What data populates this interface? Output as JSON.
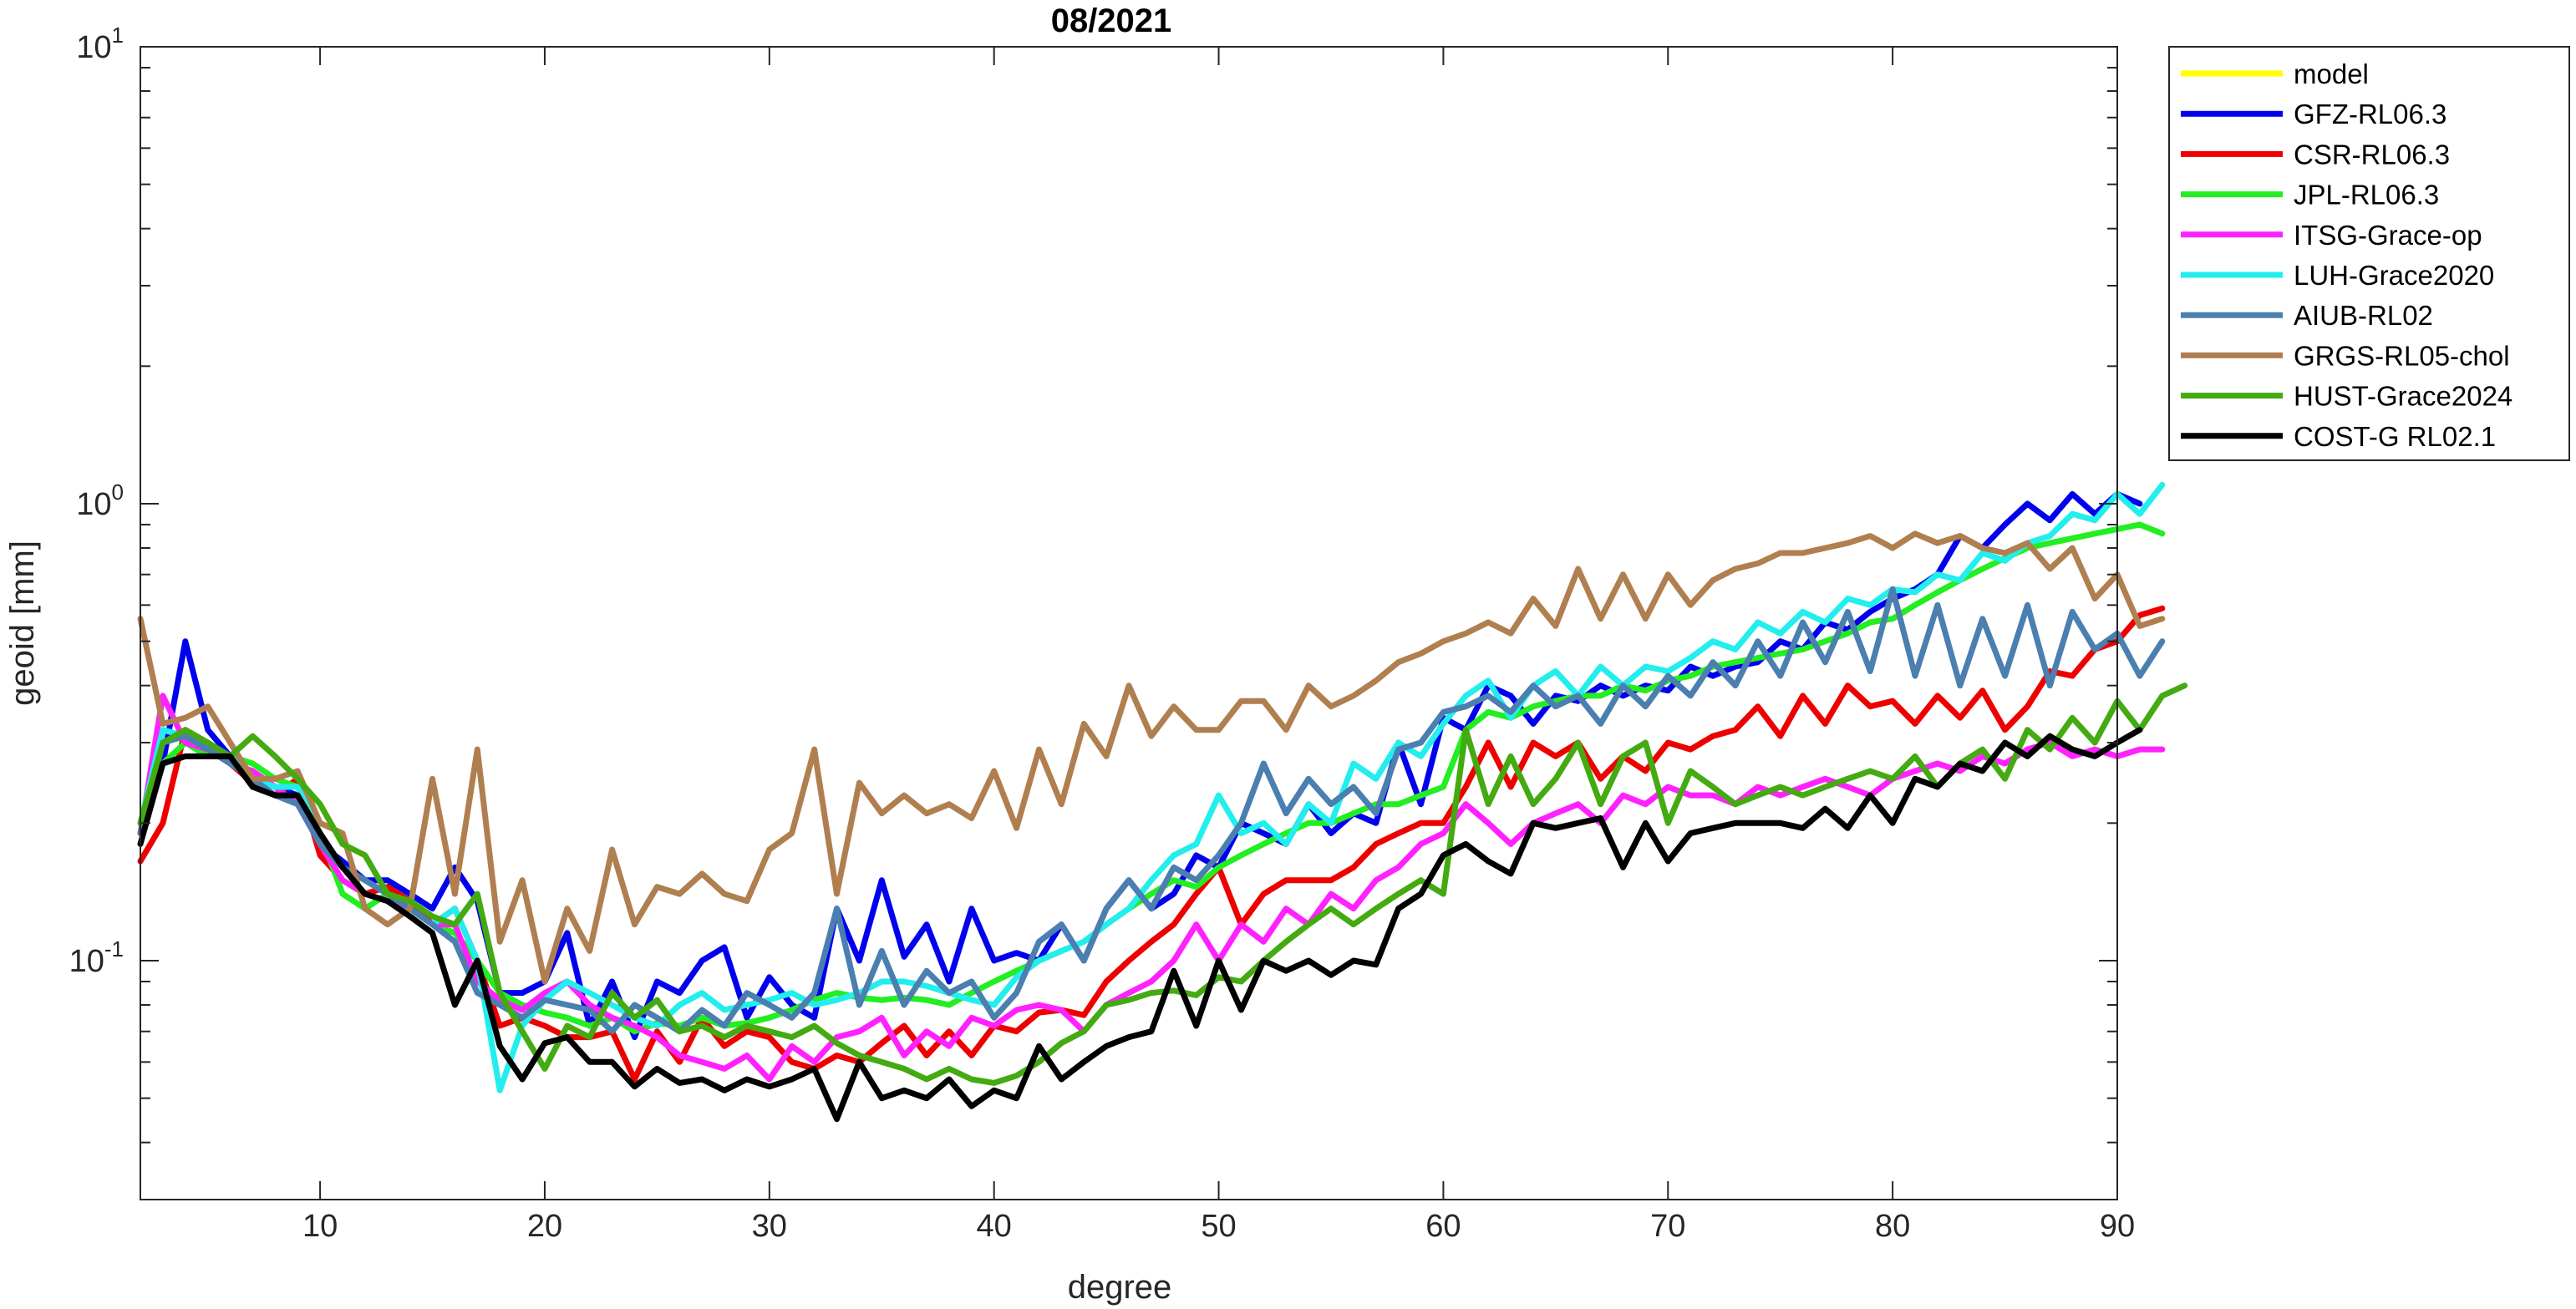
{
  "chart_data": {
    "type": "line",
    "title": "08/2021",
    "xlabel": "degree",
    "ylabel": "geoid [mm]",
    "xlim": [
      2,
      90
    ],
    "ylim": [
      0.03,
      10
    ],
    "yscale": "log",
    "grid": false,
    "legend_position": "outside-top-right",
    "x_ticks": [
      10,
      20,
      30,
      40,
      50,
      60,
      70,
      80,
      90
    ],
    "x_tick_labels": [
      "10",
      "20",
      "30",
      "40",
      "50",
      "60",
      "70",
      "80",
      "90"
    ],
    "y_ticks": [
      {
        "value": 10,
        "base": "10",
        "exponent": "1"
      },
      {
        "value": 1,
        "base": "10",
        "exponent": "0"
      },
      {
        "value": 0.1,
        "base": "10",
        "exponent": "-1"
      }
    ],
    "series": [
      {
        "name": "model",
        "color": "#ffff00",
        "values": []
      },
      {
        "name": "GFZ-RL06.3",
        "color": "#0000ee",
        "values": [
          0.19,
          0.27,
          0.5,
          0.32,
          0.28,
          0.25,
          0.24,
          0.23,
          0.18,
          0.165,
          0.15,
          0.15,
          0.14,
          0.13,
          0.16,
          0.135,
          0.085,
          0.085,
          0.09,
          0.115,
          0.072,
          0.09,
          0.068,
          0.09,
          0.085,
          0.1,
          0.107,
          0.075,
          0.092,
          0.08,
          0.075,
          0.13,
          0.1,
          0.15,
          0.102,
          0.12,
          0.09,
          0.13,
          0.1,
          0.104,
          0.1,
          0.12,
          0.1,
          0.13,
          0.15,
          0.13,
          0.14,
          0.17,
          0.16,
          0.2,
          0.19,
          0.18,
          0.22,
          0.19,
          0.21,
          0.2,
          0.3,
          0.22,
          0.34,
          0.32,
          0.4,
          0.38,
          0.33,
          0.38,
          0.37,
          0.4,
          0.38,
          0.4,
          0.39,
          0.44,
          0.42,
          0.44,
          0.45,
          0.5,
          0.48,
          0.55,
          0.53,
          0.58,
          0.62,
          0.65,
          0.7,
          0.85,
          0.8,
          0.9,
          1.0,
          0.92,
          1.05,
          0.95,
          1.05,
          1.0
        ]
      },
      {
        "name": "CSR-RL06.3",
        "color": "#ee0000",
        "values": [
          0.165,
          0.2,
          0.32,
          0.3,
          0.27,
          0.245,
          0.23,
          0.25,
          0.17,
          0.15,
          0.14,
          0.145,
          0.135,
          0.12,
          0.13,
          0.1,
          0.072,
          0.075,
          0.072,
          0.068,
          0.068,
          0.07,
          0.055,
          0.07,
          0.06,
          0.075,
          0.065,
          0.07,
          0.068,
          0.06,
          0.058,
          0.062,
          0.06,
          0.066,
          0.072,
          0.062,
          0.07,
          0.062,
          0.072,
          0.07,
          0.077,
          0.078,
          0.076,
          0.09,
          0.1,
          0.11,
          0.12,
          0.14,
          0.16,
          0.12,
          0.14,
          0.15,
          0.15,
          0.15,
          0.16,
          0.18,
          0.19,
          0.2,
          0.2,
          0.24,
          0.3,
          0.24,
          0.3,
          0.28,
          0.3,
          0.25,
          0.28,
          0.26,
          0.3,
          0.29,
          0.31,
          0.32,
          0.36,
          0.31,
          0.38,
          0.33,
          0.4,
          0.36,
          0.37,
          0.33,
          0.38,
          0.34,
          0.39,
          0.32,
          0.36,
          0.43,
          0.42,
          0.48,
          0.5,
          0.57,
          0.59
        ]
      },
      {
        "name": "JPL-RL06.3",
        "color": "#22ee22",
        "values": [
          0.2,
          0.27,
          0.3,
          0.28,
          0.28,
          0.27,
          0.25,
          0.24,
          0.19,
          0.14,
          0.13,
          0.14,
          0.13,
          0.12,
          0.115,
          0.1,
          0.085,
          0.08,
          0.077,
          0.075,
          0.072,
          0.075,
          0.07,
          0.073,
          0.072,
          0.075,
          0.072,
          0.073,
          0.075,
          0.078,
          0.082,
          0.085,
          0.083,
          0.082,
          0.083,
          0.082,
          0.08,
          0.085,
          0.09,
          0.095,
          0.1,
          0.105,
          0.11,
          0.12,
          0.13,
          0.14,
          0.15,
          0.145,
          0.16,
          0.17,
          0.18,
          0.19,
          0.2,
          0.2,
          0.21,
          0.22,
          0.22,
          0.23,
          0.24,
          0.32,
          0.35,
          0.34,
          0.36,
          0.37,
          0.38,
          0.38,
          0.4,
          0.39,
          0.41,
          0.42,
          0.44,
          0.45,
          0.46,
          0.47,
          0.48,
          0.5,
          0.52,
          0.55,
          0.56,
          0.6,
          0.64,
          0.68,
          0.72,
          0.76,
          0.8,
          0.82,
          0.84,
          0.86,
          0.88,
          0.9,
          0.86
        ]
      },
      {
        "name": "ITSG-Grace-op",
        "color": "#ff22ff",
        "values": [
          0.19,
          0.38,
          0.3,
          0.29,
          0.27,
          0.26,
          0.24,
          0.22,
          0.18,
          0.15,
          0.14,
          0.135,
          0.13,
          0.12,
          0.12,
          0.09,
          0.082,
          0.078,
          0.085,
          0.09,
          0.08,
          0.075,
          0.072,
          0.068,
          0.062,
          0.06,
          0.058,
          0.062,
          0.055,
          0.065,
          0.06,
          0.068,
          0.07,
          0.075,
          0.062,
          0.07,
          0.065,
          0.075,
          0.072,
          0.078,
          0.08,
          0.078,
          0.07,
          0.08,
          0.085,
          0.09,
          0.1,
          0.12,
          0.1,
          0.12,
          0.11,
          0.13,
          0.12,
          0.14,
          0.13,
          0.15,
          0.16,
          0.18,
          0.19,
          0.22,
          0.2,
          0.18,
          0.2,
          0.21,
          0.22,
          0.2,
          0.23,
          0.22,
          0.24,
          0.23,
          0.23,
          0.22,
          0.24,
          0.23,
          0.24,
          0.25,
          0.24,
          0.23,
          0.25,
          0.26,
          0.27,
          0.26,
          0.28,
          0.27,
          0.29,
          0.3,
          0.28,
          0.29,
          0.28,
          0.29,
          0.29
        ]
      },
      {
        "name": "LUH-Grace2020",
        "color": "#22eeee",
        "values": [
          0.2,
          0.32,
          0.31,
          0.3,
          0.28,
          0.25,
          0.24,
          0.24,
          0.19,
          0.16,
          0.15,
          0.14,
          0.13,
          0.12,
          0.13,
          0.1,
          0.052,
          0.072,
          0.082,
          0.09,
          0.085,
          0.08,
          0.075,
          0.072,
          0.08,
          0.085,
          0.078,
          0.08,
          0.082,
          0.085,
          0.08,
          0.082,
          0.085,
          0.09,
          0.09,
          0.088,
          0.085,
          0.082,
          0.08,
          0.092,
          0.1,
          0.105,
          0.11,
          0.12,
          0.13,
          0.15,
          0.17,
          0.18,
          0.23,
          0.19,
          0.2,
          0.18,
          0.22,
          0.2,
          0.27,
          0.25,
          0.3,
          0.28,
          0.33,
          0.38,
          0.41,
          0.34,
          0.4,
          0.43,
          0.38,
          0.44,
          0.4,
          0.44,
          0.43,
          0.46,
          0.5,
          0.48,
          0.55,
          0.52,
          0.58,
          0.55,
          0.62,
          0.6,
          0.65,
          0.64,
          0.7,
          0.68,
          0.78,
          0.75,
          0.82,
          0.85,
          0.95,
          0.92,
          1.05,
          0.95,
          1.1
        ]
      },
      {
        "name": "AIUB-RL02",
        "color": "#4a7faf",
        "values": [
          0.19,
          0.3,
          0.31,
          0.29,
          0.27,
          0.25,
          0.23,
          0.22,
          0.18,
          0.16,
          0.15,
          0.14,
          0.13,
          0.12,
          0.11,
          0.085,
          0.08,
          0.075,
          0.082,
          0.08,
          0.078,
          0.07,
          0.08,
          0.075,
          0.07,
          0.078,
          0.072,
          0.085,
          0.08,
          0.075,
          0.085,
          0.13,
          0.08,
          0.105,
          0.08,
          0.095,
          0.085,
          0.09,
          0.075,
          0.085,
          0.11,
          0.12,
          0.1,
          0.13,
          0.15,
          0.13,
          0.16,
          0.15,
          0.17,
          0.2,
          0.27,
          0.21,
          0.25,
          0.22,
          0.24,
          0.21,
          0.29,
          0.3,
          0.35,
          0.36,
          0.38,
          0.35,
          0.4,
          0.36,
          0.38,
          0.33,
          0.4,
          0.36,
          0.42,
          0.38,
          0.45,
          0.4,
          0.5,
          0.42,
          0.55,
          0.45,
          0.58,
          0.43,
          0.65,
          0.42,
          0.6,
          0.4,
          0.56,
          0.42,
          0.6,
          0.4,
          0.58,
          0.48,
          0.52,
          0.42,
          0.5
        ]
      },
      {
        "name": "GRGS-RL05-chol",
        "color": "#b07f50",
        "values": [
          0.56,
          0.33,
          0.34,
          0.36,
          0.3,
          0.25,
          0.25,
          0.26,
          0.2,
          0.19,
          0.13,
          0.12,
          0.13,
          0.25,
          0.14,
          0.29,
          0.11,
          0.15,
          0.09,
          0.13,
          0.105,
          0.175,
          0.12,
          0.145,
          0.14,
          0.155,
          0.14,
          0.135,
          0.175,
          0.19,
          0.29,
          0.14,
          0.245,
          0.21,
          0.23,
          0.21,
          0.22,
          0.205,
          0.26,
          0.195,
          0.29,
          0.22,
          0.33,
          0.28,
          0.4,
          0.31,
          0.36,
          0.32,
          0.32,
          0.37,
          0.37,
          0.32,
          0.4,
          0.36,
          0.38,
          0.41,
          0.45,
          0.47,
          0.5,
          0.52,
          0.55,
          0.52,
          0.62,
          0.54,
          0.72,
          0.56,
          0.7,
          0.56,
          0.7,
          0.6,
          0.68,
          0.72,
          0.74,
          0.78,
          0.78,
          0.8,
          0.82,
          0.85,
          0.8,
          0.86,
          0.82,
          0.85,
          0.8,
          0.78,
          0.82,
          0.72,
          0.8,
          0.62,
          0.7,
          0.54,
          0.56
        ]
      },
      {
        "name": "HUST-Grace2024",
        "color": "#44aa11",
        "values": [
          0.2,
          0.3,
          0.32,
          0.3,
          0.28,
          0.31,
          0.28,
          0.25,
          0.22,
          0.18,
          0.17,
          0.14,
          0.135,
          0.125,
          0.12,
          0.14,
          0.085,
          0.07,
          0.058,
          0.072,
          0.068,
          0.085,
          0.075,
          0.082,
          0.07,
          0.072,
          0.068,
          0.072,
          0.07,
          0.068,
          0.072,
          0.066,
          0.062,
          0.06,
          0.058,
          0.055,
          0.058,
          0.055,
          0.054,
          0.056,
          0.06,
          0.066,
          0.07,
          0.08,
          0.082,
          0.085,
          0.086,
          0.084,
          0.092,
          0.09,
          0.1,
          0.11,
          0.12,
          0.13,
          0.12,
          0.13,
          0.14,
          0.15,
          0.14,
          0.32,
          0.22,
          0.28,
          0.22,
          0.25,
          0.3,
          0.22,
          0.28,
          0.3,
          0.2,
          0.26,
          0.24,
          0.22,
          0.23,
          0.24,
          0.23,
          0.24,
          0.25,
          0.26,
          0.25,
          0.28,
          0.24,
          0.27,
          0.29,
          0.25,
          0.32,
          0.29,
          0.34,
          0.3,
          0.37,
          0.32,
          0.38,
          0.4
        ]
      },
      {
        "name": "COST-G RL02.1",
        "color": "#000000",
        "values": [
          0.18,
          0.27,
          0.28,
          0.28,
          0.28,
          0.24,
          0.23,
          0.23,
          0.19,
          0.16,
          0.14,
          0.135,
          0.125,
          0.115,
          0.08,
          0.1,
          0.065,
          0.055,
          0.066,
          0.068,
          0.06,
          0.06,
          0.053,
          0.058,
          0.054,
          0.055,
          0.052,
          0.055,
          0.053,
          0.055,
          0.058,
          0.045,
          0.06,
          0.05,
          0.052,
          0.05,
          0.055,
          0.048,
          0.052,
          0.05,
          0.065,
          0.055,
          0.06,
          0.065,
          0.068,
          0.07,
          0.095,
          0.072,
          0.1,
          0.078,
          0.1,
          0.095,
          0.1,
          0.093,
          0.1,
          0.098,
          0.13,
          0.14,
          0.17,
          0.18,
          0.165,
          0.155,
          0.2,
          0.195,
          0.2,
          0.205,
          0.16,
          0.2,
          0.165,
          0.19,
          0.195,
          0.2,
          0.2,
          0.2,
          0.195,
          0.215,
          0.195,
          0.23,
          0.2,
          0.25,
          0.24,
          0.27,
          0.26,
          0.3,
          0.28,
          0.31,
          0.29,
          0.28,
          0.3,
          0.32
        ]
      }
    ]
  }
}
